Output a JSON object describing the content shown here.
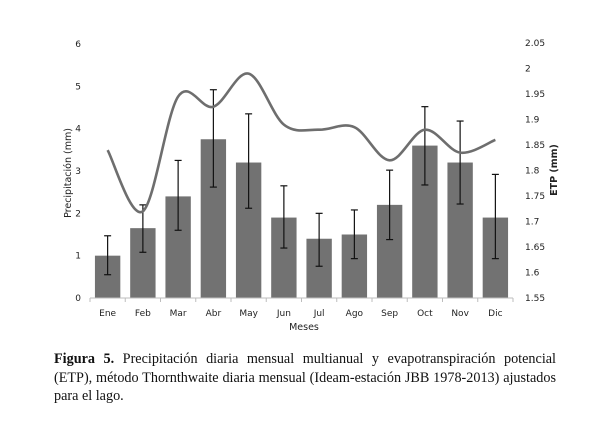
{
  "chart_data": {
    "type": "bar",
    "title": "",
    "xlabel": "Meses",
    "ylabel": "Precipitación (mm)",
    "y2label": "ETP (mm)",
    "categories": [
      "Ene",
      "Feb",
      "Mar",
      "Abr",
      "May",
      "Jun",
      "Jul",
      "Ago",
      "Sep",
      "Oct",
      "Nov",
      "Dic"
    ],
    "series": [
      {
        "name": "Precipitación",
        "type": "bar",
        "axis": "left",
        "color": "#727272",
        "values": [
          1.0,
          1.65,
          2.4,
          3.75,
          3.2,
          1.9,
          1.4,
          1.5,
          2.2,
          3.6,
          3.2,
          1.9
        ],
        "error_low": [
          0.55,
          1.08,
          1.6,
          2.62,
          2.12,
          1.18,
          0.75,
          0.93,
          1.38,
          2.67,
          2.22,
          0.93
        ],
        "error_high": [
          1.47,
          2.2,
          3.25,
          4.92,
          4.35,
          2.65,
          2.0,
          2.08,
          3.02,
          4.52,
          4.18,
          2.92
        ]
      },
      {
        "name": "ETP",
        "type": "line",
        "axis": "right",
        "color": "#6e6e6e",
        "values": [
          1.84,
          1.72,
          1.945,
          1.925,
          1.99,
          1.89,
          1.88,
          1.885,
          1.82,
          1.88,
          1.835,
          1.86
        ]
      }
    ],
    "ylim": [
      0,
      6
    ],
    "yticks": [
      "0",
      "1",
      "2",
      "3",
      "4",
      "5",
      "6"
    ],
    "y2lim": [
      1.55,
      2.05
    ],
    "y2ticks": [
      "1.55",
      "1.6",
      "1.65",
      "1.7",
      "1.75",
      "1.8",
      "1.85",
      "1.9",
      "1.95",
      "2",
      "2.05"
    ],
    "grid": false,
    "legend": "none"
  },
  "caption": {
    "label": "Figura 5.",
    "text": " Precipitación diaria mensual multianual y evapotranspiración potencial (ETP), método Thornthwaite diaria mensual (Ideam-estación JBB 1978-2013) ajustados para el lago."
  }
}
